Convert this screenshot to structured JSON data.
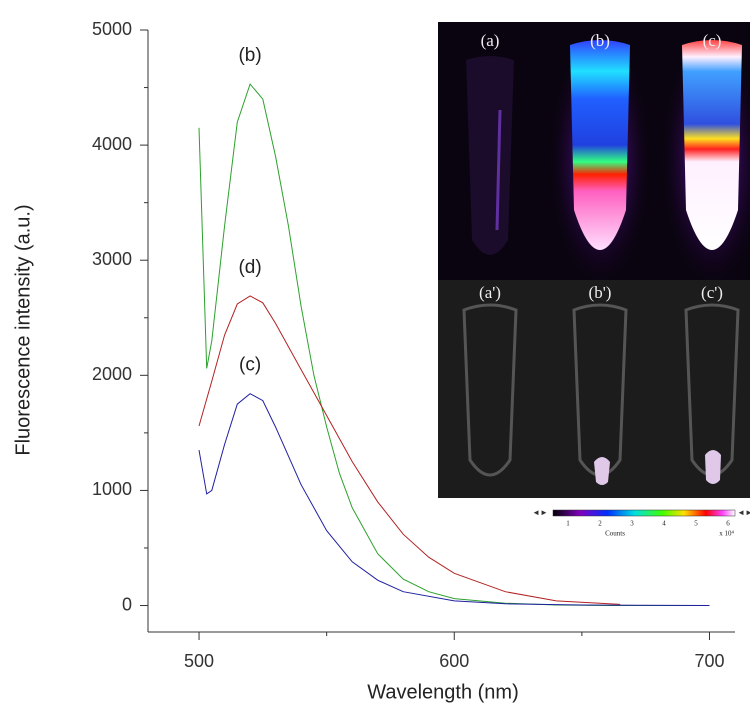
{
  "chart_data": {
    "type": "line",
    "x_label": "Wavelength (nm)",
    "y_label": "Fluorescence intensity (a.u.)",
    "xlim": [
      480,
      710
    ],
    "xticks": [
      500,
      600,
      700
    ],
    "ylim": [
      -230,
      5000
    ],
    "yticks": [
      0,
      1000,
      2000,
      3000,
      4000,
      5000
    ],
    "series": [
      {
        "name": "(b)",
        "color": "#2ca02c",
        "x": [
          500,
          503,
          505,
          510,
          515,
          520,
          525,
          530,
          535,
          540,
          545,
          550,
          555,
          560,
          570,
          580,
          590,
          600,
          620,
          640,
          660,
          700
        ],
        "values": [
          4150,
          2060,
          2300,
          3300,
          4200,
          4530,
          4400,
          3900,
          3300,
          2600,
          2000,
          1550,
          1150,
          850,
          450,
          230,
          120,
          60,
          20,
          5,
          0,
          0
        ]
      },
      {
        "name": "(d)",
        "color": "#b22222",
        "x": [
          500,
          505,
          510,
          515,
          520,
          525,
          530,
          540,
          550,
          560,
          570,
          580,
          590,
          600,
          620,
          640,
          665
        ],
        "values": [
          1560,
          1950,
          2350,
          2620,
          2690,
          2630,
          2450,
          2050,
          1650,
          1250,
          900,
          620,
          420,
          280,
          120,
          40,
          10
        ]
      },
      {
        "name": "(c)",
        "color": "#1f1fa0",
        "x": [
          500,
          503,
          505,
          510,
          515,
          520,
          525,
          530,
          540,
          550,
          560,
          570,
          580,
          600,
          620,
          650,
          700
        ],
        "values": [
          1350,
          970,
          1000,
          1400,
          1750,
          1840,
          1780,
          1550,
          1050,
          650,
          380,
          220,
          120,
          40,
          15,
          5,
          0
        ]
      }
    ]
  },
  "inset": {
    "labels": [
      "(a)",
      "(b)",
      "(c)",
      "(a')",
      "(b')",
      "(c')"
    ],
    "colorbar_ticks": [
      1,
      2,
      3,
      4,
      5,
      6
    ],
    "colorbar_title": "Counts",
    "colorbar_unit": "x 10⁴"
  }
}
